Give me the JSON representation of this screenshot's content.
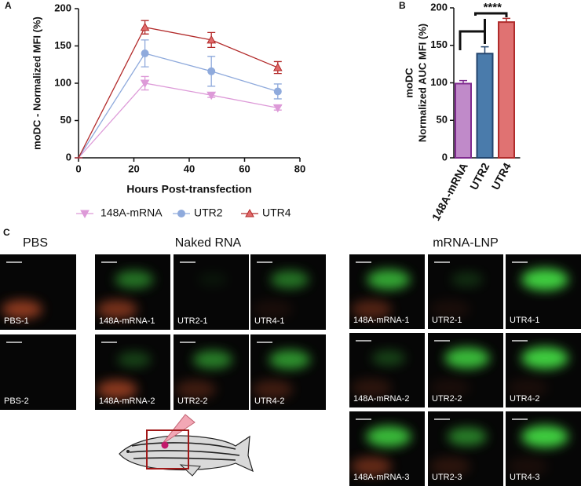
{
  "panel_labels": [
    "A",
    "B",
    "C"
  ],
  "chart_data": [
    {
      "type": "line",
      "x_label": "Hours Post-transfection",
      "y_label": "moDC - Normalized MFI (%)",
      "x": [
        0,
        24,
        48,
        72
      ],
      "xlim": [
        0,
        80
      ],
      "xticks": [
        0,
        20,
        40,
        60,
        80
      ],
      "ylim": [
        0,
        200
      ],
      "yticks": [
        0,
        50,
        100,
        150,
        200
      ],
      "legend": "bottom",
      "series": [
        {
          "name": "148A-mRNA",
          "color": "#dd9ad8",
          "marker": "triangle-down",
          "values": [
            0,
            100,
            84,
            67
          ],
          "errors": [
            0,
            9,
            3,
            3
          ]
        },
        {
          "name": "UTR2",
          "color": "#8faadc",
          "marker": "circle",
          "values": [
            0,
            140,
            116,
            89
          ],
          "errors": [
            0,
            18,
            20,
            10
          ]
        },
        {
          "name": "UTR4",
          "color": "#b22a2a",
          "marker": "triangle-up",
          "values": [
            0,
            175,
            158,
            121
          ],
          "errors": [
            0,
            9,
            10,
            8
          ]
        }
      ]
    },
    {
      "type": "bar",
      "y_label": [
        "moDC",
        "Normalized AUC MFI (%)"
      ],
      "categories": [
        "148A-mRNA",
        "UTR2",
        "UTR4"
      ],
      "values": [
        99,
        139,
        181
      ],
      "errors": [
        4,
        9,
        5
      ],
      "colors": [
        "#c08ac9",
        "#4a7bab",
        "#e07272"
      ],
      "edge_colors": [
        "#7f2a8f",
        "#24456e",
        "#b02c2c"
      ],
      "ylim": [
        0,
        200
      ],
      "yticks": [
        0,
        50,
        100,
        150,
        200
      ],
      "annotation": "****"
    }
  ],
  "panel_c": {
    "groups": [
      {
        "title": "PBS",
        "images": [
          "PBS-1",
          "PBS-2"
        ]
      },
      {
        "title": "Naked RNA",
        "images": [
          "148A-mRNA-1",
          "UTR2-1",
          "UTR4-1",
          "148A-mRNA-2",
          "UTR2-2",
          "UTR4-2"
        ]
      },
      {
        "title": "mRNA-LNP",
        "images": [
          "148A-mRNA-1",
          "UTR2-1",
          "UTR4-1",
          "148A-mRNA-2",
          "UTR2-2",
          "UTR4-2",
          "148A-mRNA-3",
          "UTR2-3",
          "UTR4-3"
        ]
      }
    ]
  }
}
